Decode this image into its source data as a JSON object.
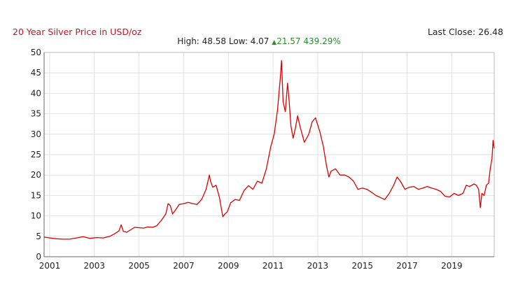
{
  "header": {
    "title": "20 Year Silver Price in USD/oz",
    "last_close_label": "Last Close:",
    "last_close_value": "26.48",
    "high_label": "High:",
    "high_value": "48.58",
    "low_label": "Low:",
    "low_value": "4.07",
    "change_value": "21.57",
    "change_percent": "439.29%"
  },
  "colors": {
    "title": "#d0111c",
    "line": "#dd0000",
    "change": "#2e8b2e",
    "grid": "#e2e2e2",
    "axis": "#666666"
  },
  "chart_data": {
    "type": "line",
    "title": "20 Year Silver Price in USD/oz",
    "xlabel": "",
    "ylabel": "",
    "ylim": [
      0,
      50
    ],
    "xlim": [
      2000.75,
      2020.9
    ],
    "yticks": [
      0,
      5,
      10,
      15,
      20,
      25,
      30,
      35,
      40,
      45,
      50
    ],
    "xtick_labels": [
      "2001",
      "2003",
      "2005",
      "2007",
      "2009",
      "2011",
      "2013",
      "2015",
      "2017",
      "2019"
    ],
    "grid": true,
    "series": [
      {
        "values_note_units": "USD/oz",
        "x": [
          2000.75,
          2001.0,
          2001.3,
          2001.6,
          2001.9,
          2002.2,
          2002.5,
          2002.8,
          2003.1,
          2003.4,
          2003.7,
          2003.9,
          2004.1,
          2004.2,
          2004.3,
          2004.45,
          2004.6,
          2004.8,
          2005.0,
          2005.2,
          2005.4,
          2005.6,
          2005.8,
          2006.0,
          2006.2,
          2006.3,
          2006.4,
          2006.5,
          2006.6,
          2006.8,
          2007.0,
          2007.2,
          2007.4,
          2007.6,
          2007.8,
          2008.0,
          2008.15,
          2008.2,
          2008.3,
          2008.45,
          2008.6,
          2008.75,
          2008.85,
          2008.95,
          2009.1,
          2009.3,
          2009.5,
          2009.7,
          2009.9,
          2010.1,
          2010.3,
          2010.5,
          2010.7,
          2010.9,
          2011.05,
          2011.2,
          2011.32,
          2011.38,
          2011.45,
          2011.55,
          2011.65,
          2011.72,
          2011.8,
          2011.9,
          2012.0,
          2012.1,
          2012.2,
          2012.4,
          2012.6,
          2012.75,
          2012.9,
          2013.1,
          2013.25,
          2013.4,
          2013.5,
          2013.6,
          2013.8,
          2014.0,
          2014.2,
          2014.4,
          2014.6,
          2014.8,
          2015.0,
          2015.2,
          2015.4,
          2015.6,
          2015.8,
          2016.0,
          2016.2,
          2016.4,
          2016.55,
          2016.7,
          2016.9,
          2017.1,
          2017.3,
          2017.5,
          2017.7,
          2017.9,
          2018.1,
          2018.3,
          2018.5,
          2018.7,
          2018.9,
          2019.1,
          2019.3,
          2019.5,
          2019.65,
          2019.8,
          2020.0,
          2020.1,
          2020.2,
          2020.28,
          2020.35,
          2020.45,
          2020.55,
          2020.65,
          2020.72,
          2020.8,
          2020.85,
          2020.9
        ],
        "y": [
          4.8,
          4.6,
          4.4,
          4.3,
          4.3,
          4.6,
          4.9,
          4.5,
          4.7,
          4.6,
          5.0,
          5.6,
          6.3,
          7.8,
          6.2,
          6.0,
          6.5,
          7.2,
          7.1,
          7.0,
          7.3,
          7.2,
          7.6,
          8.9,
          10.5,
          13.0,
          12.5,
          10.5,
          11.2,
          12.8,
          13.0,
          13.3,
          13.0,
          12.8,
          14.0,
          16.5,
          20.0,
          18.5,
          17.0,
          17.5,
          14.5,
          9.8,
          10.5,
          11.0,
          13.2,
          14.0,
          13.8,
          16.2,
          17.4,
          16.5,
          18.5,
          18.0,
          21.5,
          27.0,
          30.0,
          36.0,
          43.5,
          48.0,
          38.0,
          35.5,
          42.5,
          38.0,
          32.0,
          29.0,
          31.5,
          34.5,
          32.0,
          28.0,
          30.0,
          33.0,
          34.0,
          30.5,
          27.0,
          22.0,
          19.5,
          21.0,
          21.5,
          20.0,
          20.0,
          19.5,
          18.5,
          16.5,
          16.8,
          16.5,
          15.8,
          15.0,
          14.5,
          14.0,
          15.5,
          17.5,
          19.5,
          18.5,
          16.5,
          17.0,
          17.2,
          16.5,
          16.8,
          17.2,
          16.8,
          16.5,
          16.0,
          14.8,
          14.6,
          15.5,
          15.0,
          15.5,
          17.5,
          17.2,
          17.8,
          17.5,
          16.5,
          12.0,
          15.5,
          15.0,
          17.5,
          18.0,
          21.5,
          24.0,
          28.5,
          26.5
        ]
      }
    ]
  }
}
